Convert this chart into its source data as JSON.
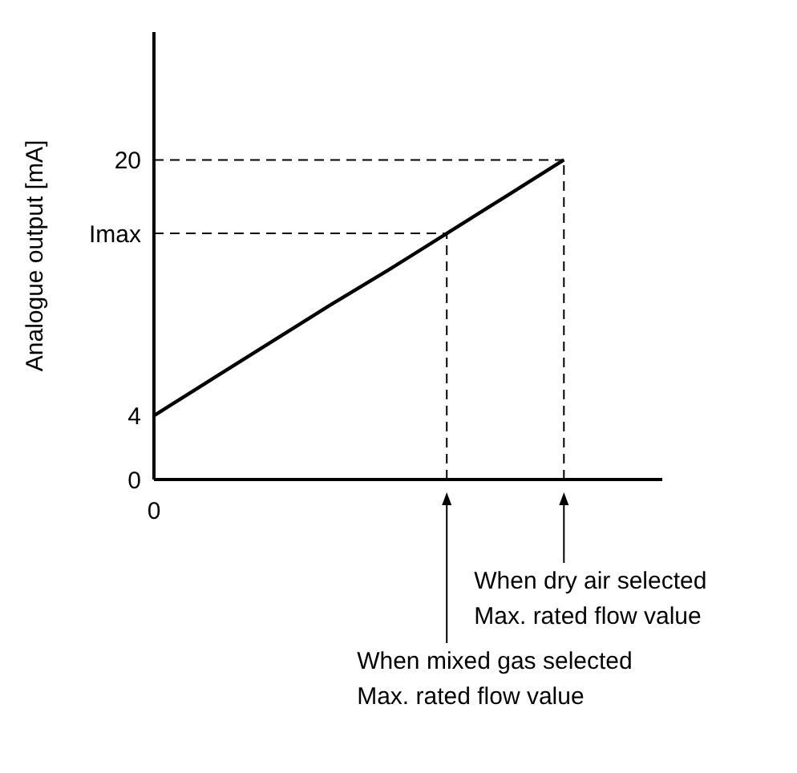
{
  "chart_data": {
    "type": "line",
    "ylabel": "Analogue output [mA]",
    "categories": [
      "0",
      null,
      null,
      null,
      null,
      null,
      null,
      null
    ],
    "series": [
      {
        "color": "#000000",
        "values": [
          4,
          6.3,
          8.6,
          10.9,
          13.1,
          15.4,
          17.7,
          20
        ]
      }
    ],
    "ylim": [
      0,
      28
    ],
    "yticks": [
      0,
      4,
      {
        "value": 15.4,
        "label": "Imax"
      },
      20
    ],
    "ref_lines": [
      {
        "axis": "y",
        "value": 15.4,
        "color": "#000000",
        "line_style": "dashed"
      },
      {
        "axis": "y",
        "value": 20,
        "color": "#000000",
        "line_style": "dashed"
      }
    ],
    "annotations": [
      "When mixed gas selected\nMax. rated flow value",
      "When dry air selected\nMax. rated flow value"
    ],
    "grid": false,
    "legend": false,
    "marker": "none",
    "line_style": "solid"
  }
}
